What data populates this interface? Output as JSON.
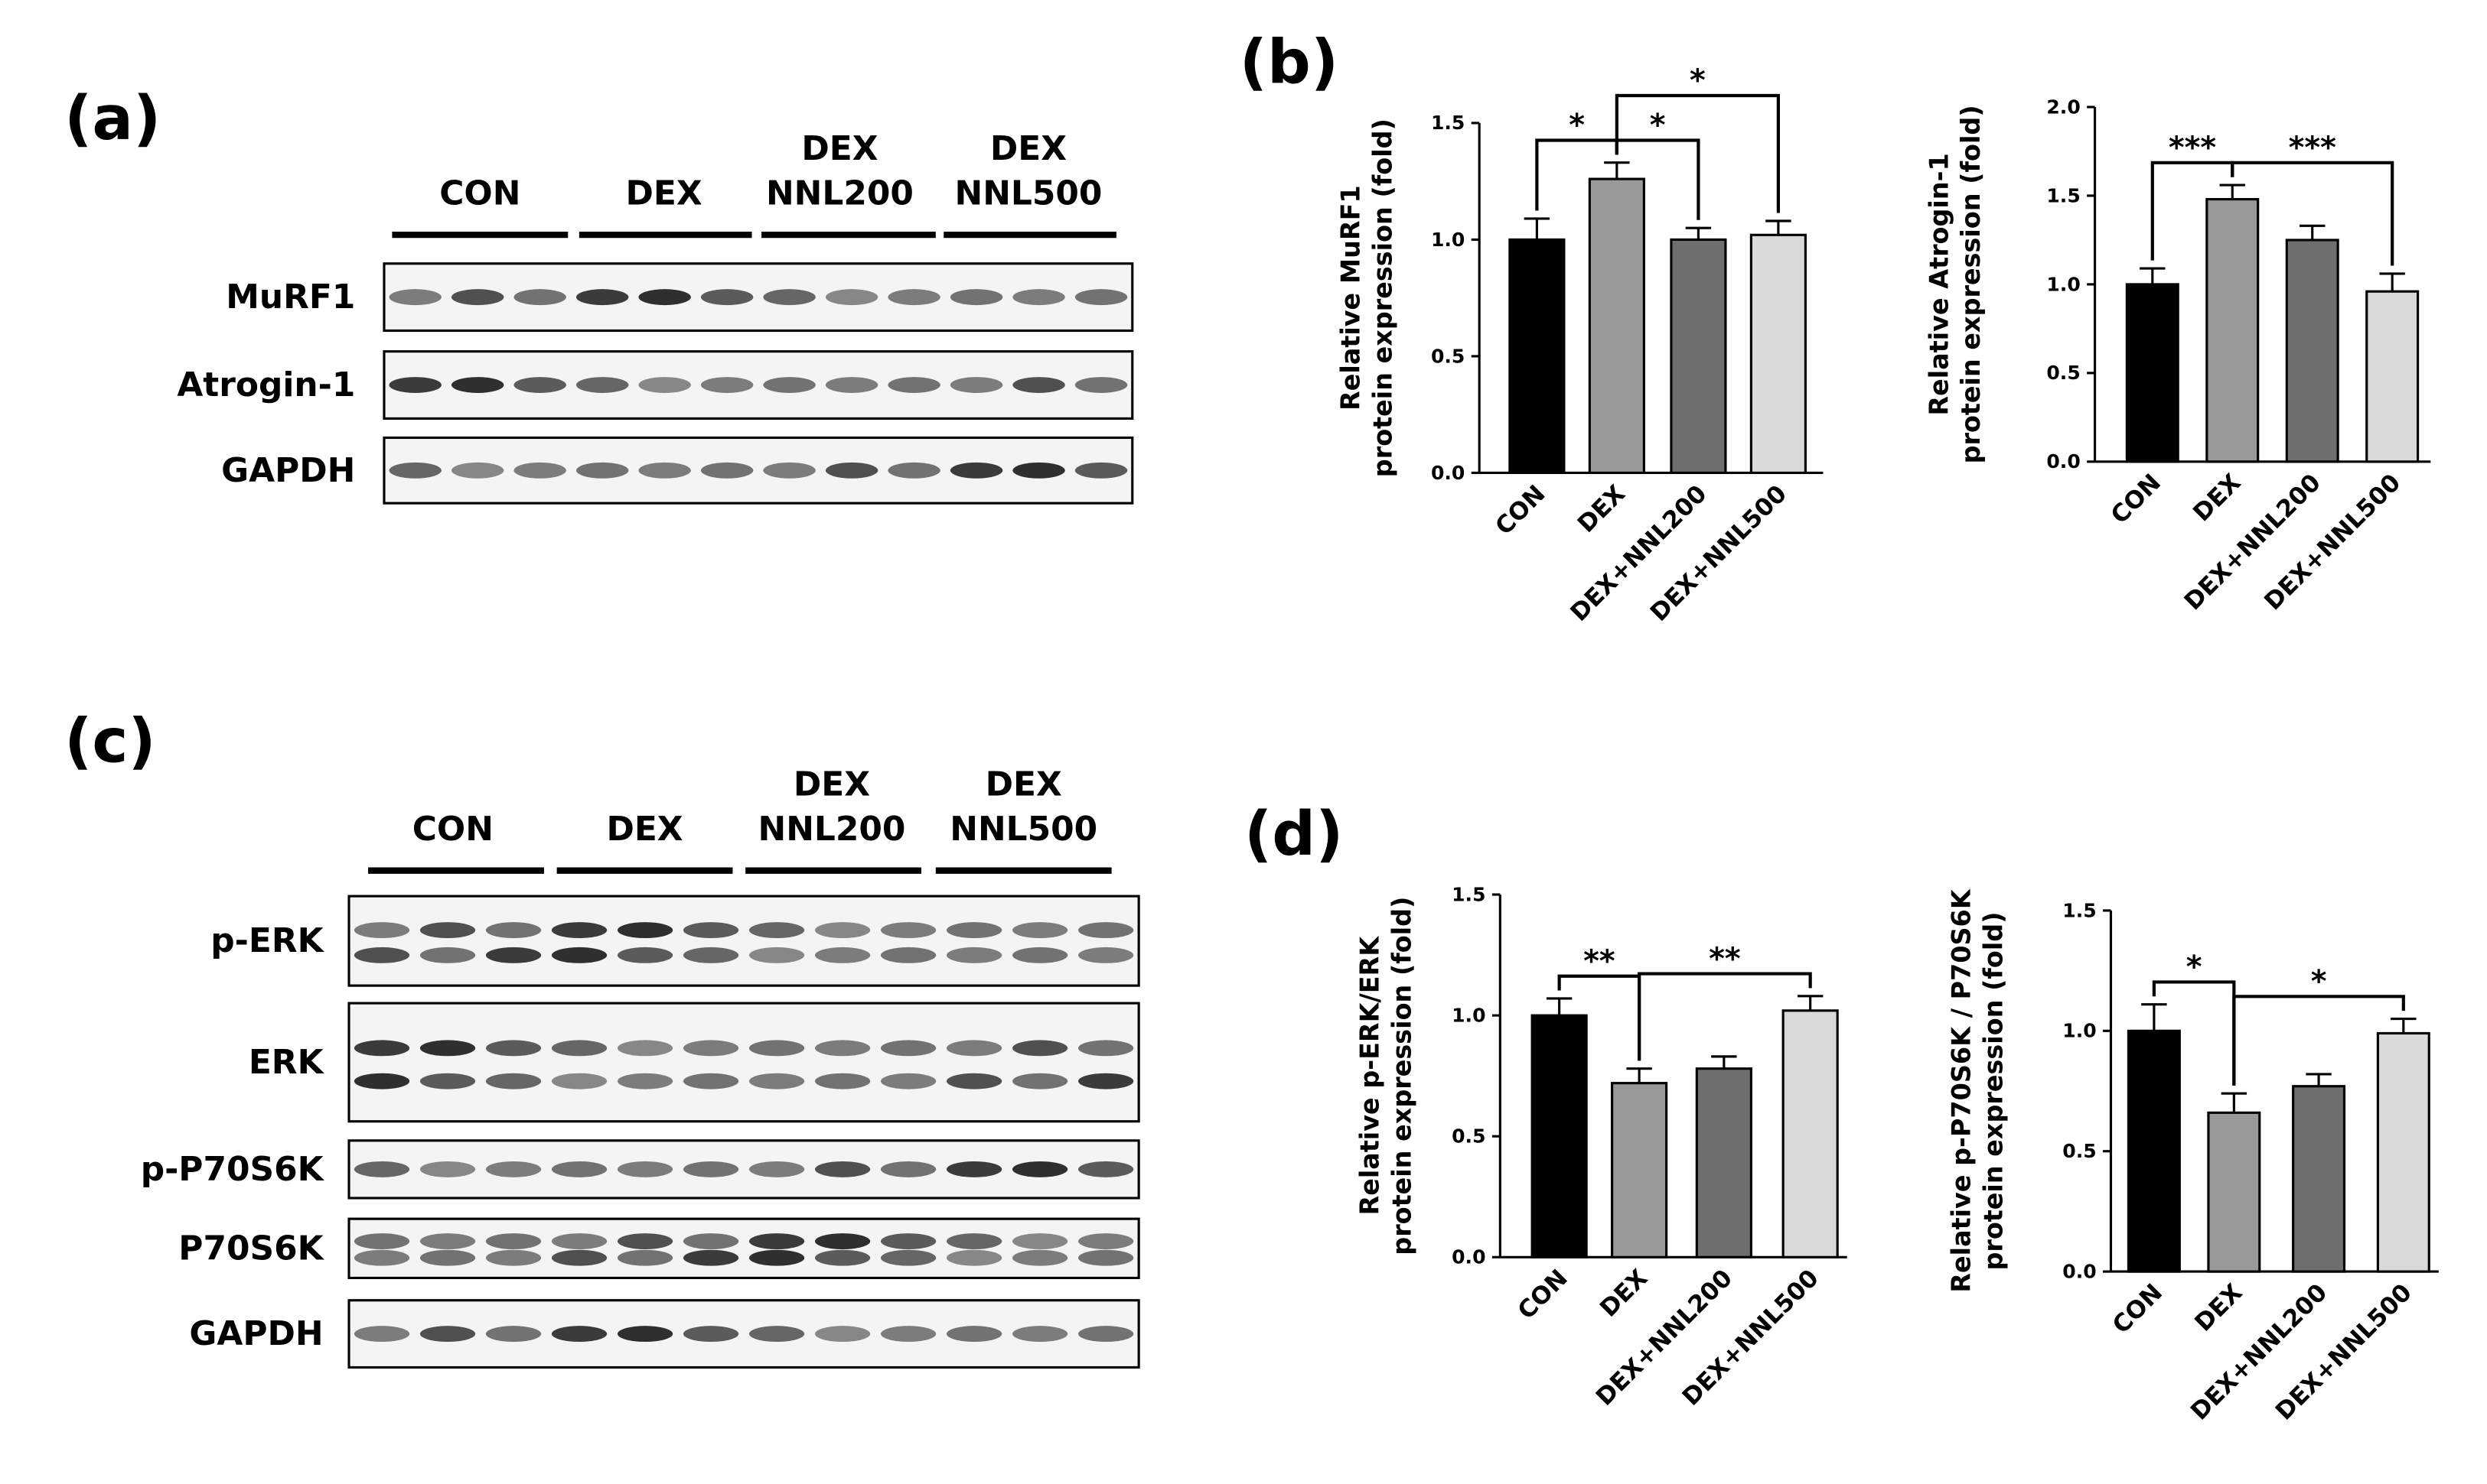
{
  "panels": [
    "(a)",
    "(b)",
    "(c)",
    "(d)"
  ],
  "blots": [
    {
      "groups": [
        [
          "CON"
        ],
        [
          "DEX"
        ],
        [
          "DEX",
          "NNL200"
        ],
        [
          "DEX",
          "NNL500"
        ]
      ],
      "rows": [
        "MuRF1",
        "Atrogin-1",
        "GAPDH"
      ]
    },
    {
      "groups": [
        [
          "CON"
        ],
        [
          "DEX"
        ],
        [
          "DEX",
          "NNL200"
        ],
        [
          "DEX",
          "NNL500"
        ]
      ],
      "rows": [
        "p-ERK",
        "ERK",
        "p-P70S6K",
        "P70S6K",
        "GAPDH"
      ]
    }
  ],
  "chart_data": [
    {
      "type": "bar",
      "ylabel": [
        "Relative MuRF1",
        "protein expression (fold)"
      ],
      "categories": [
        "CON",
        "DEX",
        "DEX+NNL200",
        "DEX+NNL500"
      ],
      "values": [
        1.0,
        1.26,
        1.0,
        1.02
      ],
      "errors": [
        0.09,
        0.07,
        0.05,
        0.06
      ],
      "colors": [
        "#000000",
        "#999999",
        "#6e6e6e",
        "#d9d9d9"
      ],
      "ylim": [
        0,
        1.5
      ],
      "yticks": [
        {
          "value": 0,
          "label": "0.0"
        },
        0.5,
        {
          "value": 1,
          "label": "1.0"
        },
        1.5
      ],
      "annotations": [
        {
          "label": "*",
          "from": "CON",
          "to": "DEX"
        },
        {
          "label": "*",
          "from": "DEX",
          "to": "DEX+NNL200"
        },
        {
          "label": "*",
          "from": "DEX",
          "to": "DEX+NNL500"
        }
      ]
    },
    {
      "type": "bar",
      "ylabel": [
        "Relative Atrogin-1",
        "protein expression (fold)"
      ],
      "categories": [
        "CON",
        "DEX",
        "DEX+NNL200",
        "DEX+NNL500"
      ],
      "values": [
        1.0,
        1.48,
        1.25,
        0.96
      ],
      "errors": [
        0.09,
        0.08,
        0.08,
        0.1
      ],
      "colors": [
        "#000000",
        "#999999",
        "#6e6e6e",
        "#d9d9d9"
      ],
      "ylim": [
        0,
        2
      ],
      "yticks": [
        {
          "value": 0,
          "label": "0.0"
        },
        0.5,
        {
          "value": 1,
          "label": "1.0"
        },
        1.5,
        {
          "value": 2,
          "label": "2.0"
        }
      ],
      "annotations": [
        {
          "label": "***",
          "from": "CON",
          "to": "DEX"
        },
        {
          "label": "***",
          "from": "DEX",
          "to": "DEX+NNL500"
        }
      ]
    },
    {
      "type": "bar",
      "ylabel": [
        "Relative p-ERK/ERK",
        "protein expression (fold)"
      ],
      "categories": [
        "CON",
        "DEX",
        "DEX+NNL200",
        "DEX+NNL500"
      ],
      "values": [
        1.0,
        0.72,
        0.78,
        1.02
      ],
      "errors": [
        0.07,
        0.06,
        0.05,
        0.06
      ],
      "colors": [
        "#000000",
        "#999999",
        "#6e6e6e",
        "#d9d9d9"
      ],
      "ylim": [
        0,
        1.5
      ],
      "yticks": [
        {
          "value": 0,
          "label": "0.0"
        },
        0.5,
        {
          "value": 1,
          "label": "1.0"
        },
        1.5
      ],
      "annotations": [
        {
          "label": "**",
          "from": "CON",
          "to": "DEX"
        },
        {
          "label": "**",
          "from": "DEX",
          "to": "DEX+NNL500"
        }
      ]
    },
    {
      "type": "bar",
      "ylabel": [
        "Relative p-P70S6K / P70S6K",
        "protein expression (fold)"
      ],
      "categories": [
        "CON",
        "DEX",
        "DEX+NNL200",
        "DEX+NNL500"
      ],
      "values": [
        1.0,
        0.66,
        0.77,
        0.99
      ],
      "errors": [
        0.11,
        0.08,
        0.05,
        0.06
      ],
      "colors": [
        "#000000",
        "#999999",
        "#6e6e6e",
        "#d9d9d9"
      ],
      "ylim": [
        0,
        1.5
      ],
      "yticks": [
        {
          "value": 0,
          "label": "0.0"
        },
        0.5,
        {
          "value": 1,
          "label": "1.0"
        },
        1.5
      ],
      "annotations": [
        {
          "label": "*",
          "from": "CON",
          "to": "DEX"
        },
        {
          "label": "*",
          "from": "DEX",
          "to": "DEX+NNL500"
        }
      ]
    }
  ]
}
